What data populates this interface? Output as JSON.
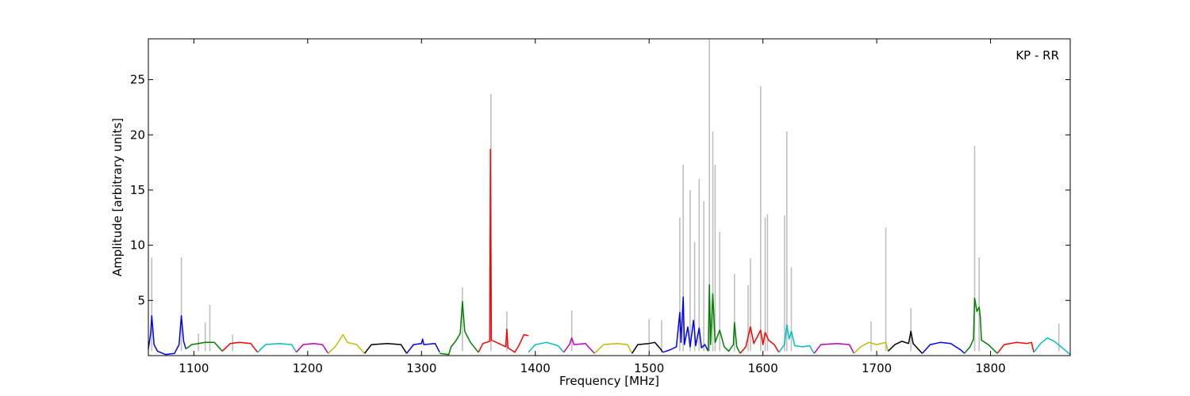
{
  "chart_data": {
    "type": "line",
    "annotation": "KP - RR",
    "xlabel": "Frequency [MHz]",
    "ylabel": "Amplitude [arbitrary units]",
    "xlim": [
      1060,
      1870
    ],
    "ylim": [
      0,
      28.7
    ],
    "xticks": [
      1100,
      1200,
      1300,
      1400,
      1500,
      1600,
      1700,
      1800
    ],
    "yticks": [
      5,
      10,
      15,
      20,
      25
    ],
    "grid": false,
    "colors": {
      "raw": "#bfbfbf",
      "blue": "#0000ff",
      "green": "#008000",
      "red": "#ff0000",
      "cyan": "#00bfbf",
      "magenta": "#bf00bf",
      "yellow": "#bfbf00",
      "black": "#000000"
    },
    "raw_spikes": [
      [
        1063,
        8.9
      ],
      [
        1089,
        8.9
      ],
      [
        1104,
        2.0
      ],
      [
        1110,
        3.0
      ],
      [
        1114,
        4.6
      ],
      [
        1134,
        1.9
      ],
      [
        1336,
        6.2
      ],
      [
        1361,
        23.7
      ],
      [
        1375,
        4.0
      ],
      [
        1432,
        4.1
      ],
      [
        1500,
        3.3
      ],
      [
        1511,
        3.2
      ],
      [
        1527,
        12.5
      ],
      [
        1530,
        17.3
      ],
      [
        1536,
        15.0
      ],
      [
        1540,
        10.3
      ],
      [
        1544,
        16.0
      ],
      [
        1548,
        14.0
      ],
      [
        1553,
        28.7
      ],
      [
        1556,
        20.3
      ],
      [
        1558,
        17.3
      ],
      [
        1562,
        11.2
      ],
      [
        1575,
        7.4
      ],
      [
        1587,
        6.4
      ],
      [
        1589,
        8.8
      ],
      [
        1598,
        24.4
      ],
      [
        1602,
        12.5
      ],
      [
        1604,
        12.8
      ],
      [
        1619,
        12.7
      ],
      [
        1621,
        20.3
      ],
      [
        1625,
        8.0
      ],
      [
        1695,
        3.1
      ],
      [
        1708,
        11.6
      ],
      [
        1730,
        4.3
      ],
      [
        1786,
        19.0
      ],
      [
        1790,
        8.9
      ],
      [
        1860,
        2.9
      ]
    ],
    "series": [
      {
        "color": "blue",
        "points": [
          [
            1060,
            0.6
          ],
          [
            1062,
            2.0
          ],
          [
            1063,
            3.6
          ],
          [
            1065,
            1.0
          ],
          [
            1068,
            0.4
          ],
          [
            1075,
            0.1
          ],
          [
            1083,
            0.2
          ],
          [
            1087,
            1.0
          ],
          [
            1089,
            3.6
          ],
          [
            1091,
            1.3
          ],
          [
            1093,
            0.6
          ]
        ]
      },
      {
        "color": "green",
        "points": [
          [
            1093,
            0.6
          ],
          [
            1098,
            1.0
          ],
          [
            1104,
            1.1
          ],
          [
            1110,
            1.2
          ],
          [
            1118,
            1.2
          ],
          [
            1125,
            0.4
          ]
        ]
      },
      {
        "color": "red",
        "points": [
          [
            1125,
            0.4
          ],
          [
            1132,
            1.1
          ],
          [
            1140,
            1.2
          ],
          [
            1150,
            1.1
          ],
          [
            1156,
            0.3
          ]
        ]
      },
      {
        "color": "cyan",
        "points": [
          [
            1156,
            0.3
          ],
          [
            1163,
            1.0
          ],
          [
            1175,
            1.1
          ],
          [
            1186,
            1.0
          ],
          [
            1190,
            0.3
          ]
        ]
      },
      {
        "color": "magenta",
        "points": [
          [
            1190,
            0.3
          ],
          [
            1196,
            1.0
          ],
          [
            1205,
            1.1
          ],
          [
            1213,
            1.0
          ],
          [
            1218,
            0.2
          ]
        ]
      },
      {
        "color": "yellow",
        "points": [
          [
            1218,
            0.2
          ],
          [
            1224,
            0.8
          ],
          [
            1228,
            1.4
          ],
          [
            1231,
            1.9
          ],
          [
            1235,
            1.2
          ],
          [
            1243,
            1.0
          ],
          [
            1250,
            0.2
          ]
        ]
      },
      {
        "color": "black",
        "points": [
          [
            1250,
            0.2
          ],
          [
            1256,
            1.0
          ],
          [
            1270,
            1.1
          ],
          [
            1282,
            1.0
          ],
          [
            1287,
            0.2
          ]
        ]
      },
      {
        "color": "blue",
        "points": [
          [
            1287,
            0.2
          ],
          [
            1293,
            1.0
          ],
          [
            1300,
            1.1
          ],
          [
            1301,
            1.5
          ],
          [
            1302,
            1.0
          ],
          [
            1312,
            1.1
          ],
          [
            1316,
            0.3
          ]
        ]
      },
      {
        "color": "green",
        "points": [
          [
            1316,
            0.2
          ],
          [
            1324,
            0.1
          ],
          [
            1326,
            0.8
          ],
          [
            1330,
            1.3
          ],
          [
            1334,
            2.0
          ],
          [
            1336,
            4.9
          ],
          [
            1338,
            2.2
          ],
          [
            1343,
            1.2
          ],
          [
            1350,
            0.3
          ]
        ]
      },
      {
        "color": "red",
        "points": [
          [
            1350,
            0.3
          ],
          [
            1354,
            1.1
          ],
          [
            1360,
            1.3
          ],
          [
            1360.6,
            18.7
          ],
          [
            1361.4,
            1.4
          ],
          [
            1368,
            1.1
          ],
          [
            1374,
            0.8
          ],
          [
            1375,
            2.4
          ],
          [
            1376,
            0.7
          ],
          [
            1382,
            0.3
          ],
          [
            1386,
            1.0
          ],
          [
            1390,
            1.9
          ],
          [
            1394,
            1.8
          ]
        ]
      },
      {
        "color": "cyan",
        "points": [
          [
            1394,
            0.3
          ],
          [
            1400,
            1.0
          ],
          [
            1410,
            1.2
          ],
          [
            1420,
            0.9
          ],
          [
            1425,
            0.3
          ]
        ]
      },
      {
        "color": "magenta",
        "points": [
          [
            1425,
            0.3
          ],
          [
            1430,
            1.0
          ],
          [
            1432,
            1.6
          ],
          [
            1434,
            1.0
          ],
          [
            1444,
            1.1
          ],
          [
            1452,
            0.2
          ]
        ]
      },
      {
        "color": "yellow",
        "points": [
          [
            1452,
            0.2
          ],
          [
            1460,
            1.0
          ],
          [
            1472,
            1.1
          ],
          [
            1481,
            1.0
          ],
          [
            1485,
            0.2
          ]
        ]
      },
      {
        "color": "black",
        "points": [
          [
            1485,
            0.2
          ],
          [
            1490,
            1.0
          ],
          [
            1500,
            1.1
          ],
          [
            1505,
            1.2
          ],
          [
            1510,
            0.6
          ],
          [
            1512,
            0.3
          ]
        ]
      },
      {
        "color": "blue",
        "points": [
          [
            1512,
            0.3
          ],
          [
            1518,
            0.5
          ],
          [
            1524,
            0.8
          ],
          [
            1527,
            3.9
          ],
          [
            1528,
            1.2
          ],
          [
            1530,
            5.3
          ],
          [
            1531,
            1.0
          ],
          [
            1534,
            2.6
          ],
          [
            1536,
            0.8
          ],
          [
            1539,
            3.2
          ],
          [
            1541,
            0.9
          ],
          [
            1544,
            2.5
          ],
          [
            1546,
            0.7
          ],
          [
            1549,
            1.0
          ],
          [
            1552,
            0.4
          ]
        ]
      },
      {
        "color": "green",
        "points": [
          [
            1552,
            0.4
          ],
          [
            1553,
            6.4
          ],
          [
            1554,
            1.0
          ],
          [
            1556,
            5.6
          ],
          [
            1558,
            1.2
          ],
          [
            1562,
            2.3
          ],
          [
            1566,
            0.8
          ],
          [
            1570,
            0.4
          ],
          [
            1574,
            1.0
          ],
          [
            1575,
            3.0
          ],
          [
            1577,
            0.8
          ],
          [
            1580,
            0.2
          ]
        ]
      },
      {
        "color": "red",
        "points": [
          [
            1580,
            0.2
          ],
          [
            1585,
            0.8
          ],
          [
            1589,
            2.6
          ],
          [
            1592,
            1.1
          ],
          [
            1598,
            2.3
          ],
          [
            1600,
            1.0
          ],
          [
            1602,
            2.1
          ],
          [
            1605,
            1.4
          ],
          [
            1610,
            1.0
          ],
          [
            1614,
            0.3
          ]
        ]
      },
      {
        "color": "cyan",
        "points": [
          [
            1614,
            0.3
          ],
          [
            1619,
            1.0
          ],
          [
            1621,
            2.8
          ],
          [
            1623,
            1.5
          ],
          [
            1625,
            2.2
          ],
          [
            1628,
            0.9
          ],
          [
            1635,
            0.8
          ],
          [
            1641,
            0.9
          ],
          [
            1645,
            0.2
          ]
        ]
      },
      {
        "color": "magenta",
        "points": [
          [
            1645,
            0.2
          ],
          [
            1651,
            1.0
          ],
          [
            1665,
            1.1
          ],
          [
            1676,
            1.0
          ],
          [
            1680,
            0.2
          ]
        ]
      },
      {
        "color": "yellow",
        "points": [
          [
            1680,
            0.2
          ],
          [
            1686,
            0.8
          ],
          [
            1693,
            1.2
          ],
          [
            1700,
            1.0
          ],
          [
            1708,
            1.2
          ],
          [
            1710,
            0.4
          ]
        ]
      },
      {
        "color": "black",
        "points": [
          [
            1710,
            0.4
          ],
          [
            1716,
            1.0
          ],
          [
            1722,
            1.3
          ],
          [
            1728,
            1.1
          ],
          [
            1730,
            2.2
          ],
          [
            1732,
            1.1
          ],
          [
            1740,
            0.2
          ]
        ]
      },
      {
        "color": "blue",
        "points": [
          [
            1740,
            0.2
          ],
          [
            1747,
            1.0
          ],
          [
            1756,
            1.2
          ],
          [
            1765,
            1.1
          ],
          [
            1774,
            0.5
          ],
          [
            1777,
            0.2
          ]
        ]
      },
      {
        "color": "green",
        "points": [
          [
            1777,
            0.2
          ],
          [
            1782,
            0.8
          ],
          [
            1785,
            1.5
          ],
          [
            1786,
            5.2
          ],
          [
            1788,
            4.0
          ],
          [
            1790,
            4.4
          ],
          [
            1791,
            3.5
          ],
          [
            1792,
            1.4
          ],
          [
            1798,
            1.0
          ],
          [
            1806,
            0.2
          ]
        ]
      },
      {
        "color": "red",
        "points": [
          [
            1806,
            0.2
          ],
          [
            1812,
            1.0
          ],
          [
            1823,
            1.2
          ],
          [
            1832,
            1.1
          ],
          [
            1836,
            1.2
          ],
          [
            1838,
            0.3
          ]
        ]
      },
      {
        "color": "cyan",
        "points": [
          [
            1838,
            0.3
          ],
          [
            1844,
            1.1
          ],
          [
            1850,
            1.6
          ],
          [
            1856,
            1.3
          ],
          [
            1862,
            0.8
          ],
          [
            1870,
            0.1
          ]
        ]
      }
    ]
  }
}
